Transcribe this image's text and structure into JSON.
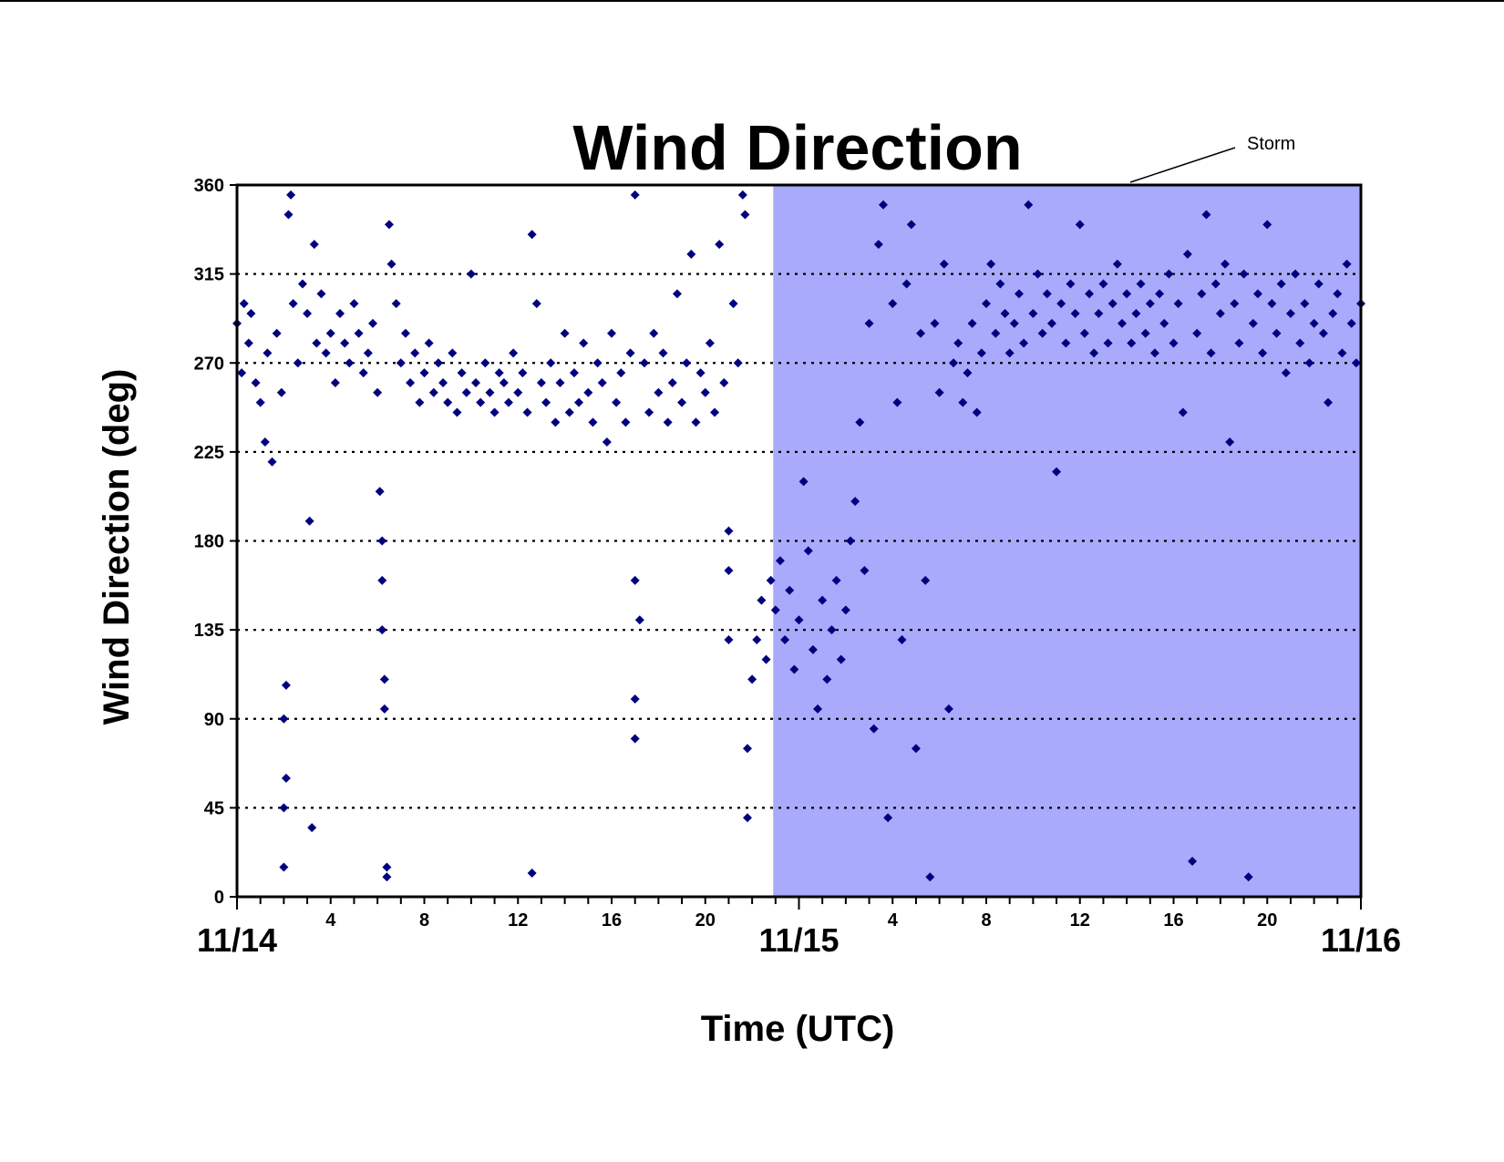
{
  "chart_data": {
    "type": "scatter",
    "title": "Wind Direction",
    "xlabel": "Time (UTC)",
    "ylabel": "Wind Direction (deg)",
    "x_unit": "hours since 11/14 00:00 UTC",
    "xlim": [
      0,
      48
    ],
    "ylim": [
      0,
      360
    ],
    "y_ticks": [
      0,
      45,
      90,
      135,
      180,
      225,
      270,
      315,
      360
    ],
    "x_hour_ticks": [
      {
        "hour": 4,
        "label": "4"
      },
      {
        "hour": 8,
        "label": "8"
      },
      {
        "hour": 12,
        "label": "12"
      },
      {
        "hour": 16,
        "label": "16"
      },
      {
        "hour": 20,
        "label": "20"
      },
      {
        "hour": 28,
        "label": "4"
      },
      {
        "hour": 32,
        "label": "8"
      },
      {
        "hour": 36,
        "label": "12"
      },
      {
        "hour": 40,
        "label": "16"
      },
      {
        "hour": 44,
        "label": "20"
      }
    ],
    "x_date_ticks": [
      {
        "hour": 0,
        "label": "11/14"
      },
      {
        "hour": 24,
        "label": "11/15"
      },
      {
        "hour": 48,
        "label": "11/16"
      }
    ],
    "grid": "horizontal dotted",
    "marker": "diamond",
    "marker_color": "#00007f",
    "shaded_region": {
      "start": 22.9,
      "end": 48,
      "color": "#aaaafc"
    },
    "annotation": {
      "text": "Storm"
    },
    "series": [
      {
        "points": [
          [
            0.0,
            290
          ],
          [
            0.2,
            265
          ],
          [
            0.3,
            300
          ],
          [
            0.5,
            280
          ],
          [
            0.6,
            295
          ],
          [
            0.8,
            260
          ],
          [
            1.0,
            250
          ],
          [
            1.2,
            230
          ],
          [
            1.3,
            275
          ],
          [
            1.5,
            220
          ],
          [
            1.7,
            285
          ],
          [
            1.9,
            255
          ],
          [
            2.0,
            90
          ],
          [
            2.0,
            45
          ],
          [
            2.0,
            15
          ],
          [
            2.1,
            60
          ],
          [
            2.1,
            107
          ],
          [
            2.2,
            345
          ],
          [
            2.3,
            355
          ],
          [
            2.4,
            300
          ],
          [
            2.6,
            270
          ],
          [
            2.8,
            310
          ],
          [
            3.0,
            295
          ],
          [
            3.1,
            190
          ],
          [
            3.2,
            35
          ],
          [
            3.3,
            330
          ],
          [
            3.4,
            280
          ],
          [
            3.6,
            305
          ],
          [
            3.8,
            275
          ],
          [
            4.0,
            285
          ],
          [
            4.2,
            260
          ],
          [
            4.4,
            295
          ],
          [
            4.6,
            280
          ],
          [
            4.8,
            270
          ],
          [
            5.0,
            300
          ],
          [
            5.2,
            285
          ],
          [
            5.4,
            265
          ],
          [
            5.6,
            275
          ],
          [
            5.8,
            290
          ],
          [
            6.0,
            255
          ],
          [
            6.1,
            205
          ],
          [
            6.2,
            180
          ],
          [
            6.2,
            160
          ],
          [
            6.2,
            135
          ],
          [
            6.3,
            110
          ],
          [
            6.3,
            95
          ],
          [
            6.4,
            15
          ],
          [
            6.4,
            10
          ],
          [
            6.5,
            340
          ],
          [
            6.6,
            320
          ],
          [
            6.8,
            300
          ],
          [
            7.0,
            270
          ],
          [
            7.2,
            285
          ],
          [
            7.4,
            260
          ],
          [
            7.6,
            275
          ],
          [
            7.8,
            250
          ],
          [
            8.0,
            265
          ],
          [
            8.2,
            280
          ],
          [
            8.4,
            255
          ],
          [
            8.6,
            270
          ],
          [
            8.8,
            260
          ],
          [
            9.0,
            250
          ],
          [
            9.2,
            275
          ],
          [
            9.4,
            245
          ],
          [
            9.6,
            265
          ],
          [
            9.8,
            255
          ],
          [
            10.0,
            315
          ],
          [
            10.2,
            260
          ],
          [
            10.4,
            250
          ],
          [
            10.6,
            270
          ],
          [
            10.8,
            255
          ],
          [
            11.0,
            245
          ],
          [
            11.2,
            265
          ],
          [
            11.4,
            260
          ],
          [
            11.6,
            250
          ],
          [
            11.8,
            275
          ],
          [
            12.0,
            255
          ],
          [
            12.2,
            265
          ],
          [
            12.4,
            245
          ],
          [
            12.6,
            335
          ],
          [
            12.6,
            12
          ],
          [
            12.8,
            300
          ],
          [
            13.0,
            260
          ],
          [
            13.2,
            250
          ],
          [
            13.4,
            270
          ],
          [
            13.6,
            240
          ],
          [
            13.8,
            260
          ],
          [
            14.0,
            285
          ],
          [
            14.2,
            245
          ],
          [
            14.4,
            265
          ],
          [
            14.6,
            250
          ],
          [
            14.8,
            280
          ],
          [
            15.0,
            255
          ],
          [
            15.2,
            240
          ],
          [
            15.4,
            270
          ],
          [
            15.6,
            260
          ],
          [
            15.8,
            230
          ],
          [
            16.0,
            285
          ],
          [
            16.2,
            250
          ],
          [
            16.4,
            265
          ],
          [
            16.6,
            240
          ],
          [
            16.8,
            275
          ],
          [
            17.0,
            355
          ],
          [
            17.0,
            160
          ],
          [
            17.0,
            100
          ],
          [
            17.0,
            80
          ],
          [
            17.2,
            140
          ],
          [
            17.4,
            270
          ],
          [
            17.6,
            245
          ],
          [
            17.8,
            285
          ],
          [
            18.0,
            255
          ],
          [
            18.2,
            275
          ],
          [
            18.4,
            240
          ],
          [
            18.6,
            260
          ],
          [
            18.8,
            305
          ],
          [
            19.0,
            250
          ],
          [
            19.2,
            270
          ],
          [
            19.4,
            325
          ],
          [
            19.6,
            240
          ],
          [
            19.8,
            265
          ],
          [
            20.0,
            255
          ],
          [
            20.2,
            280
          ],
          [
            20.4,
            245
          ],
          [
            20.6,
            330
          ],
          [
            20.8,
            260
          ],
          [
            21.0,
            185
          ],
          [
            21.0,
            165
          ],
          [
            21.0,
            130
          ],
          [
            21.2,
            300
          ],
          [
            21.4,
            270
          ],
          [
            21.6,
            355
          ],
          [
            21.7,
            345
          ],
          [
            21.8,
            40
          ],
          [
            21.8,
            75
          ],
          [
            22.0,
            110
          ],
          [
            22.2,
            130
          ],
          [
            22.4,
            150
          ],
          [
            22.6,
            120
          ],
          [
            22.8,
            160
          ],
          [
            23.0,
            145
          ],
          [
            23.2,
            170
          ],
          [
            23.4,
            130
          ],
          [
            23.6,
            155
          ],
          [
            23.8,
            115
          ],
          [
            24.0,
            140
          ],
          [
            24.2,
            210
          ],
          [
            24.4,
            175
          ],
          [
            24.6,
            125
          ],
          [
            24.8,
            95
          ],
          [
            25.0,
            150
          ],
          [
            25.2,
            110
          ],
          [
            25.4,
            135
          ],
          [
            25.6,
            160
          ],
          [
            25.8,
            120
          ],
          [
            26.0,
            145
          ],
          [
            26.2,
            180
          ],
          [
            26.4,
            200
          ],
          [
            26.6,
            240
          ],
          [
            26.8,
            165
          ],
          [
            27.0,
            290
          ],
          [
            27.2,
            85
          ],
          [
            27.4,
            330
          ],
          [
            27.6,
            350
          ],
          [
            27.8,
            40
          ],
          [
            28.0,
            300
          ],
          [
            28.2,
            250
          ],
          [
            28.4,
            130
          ],
          [
            28.6,
            310
          ],
          [
            28.8,
            340
          ],
          [
            29.0,
            75
          ],
          [
            29.2,
            285
          ],
          [
            29.4,
            160
          ],
          [
            29.6,
            10
          ],
          [
            29.8,
            290
          ],
          [
            30.0,
            255
          ],
          [
            30.2,
            320
          ],
          [
            30.4,
            95
          ],
          [
            30.6,
            270
          ],
          [
            30.8,
            280
          ],
          [
            31.0,
            250
          ],
          [
            31.2,
            265
          ],
          [
            31.4,
            290
          ],
          [
            31.6,
            245
          ],
          [
            31.8,
            275
          ],
          [
            32.0,
            300
          ],
          [
            32.2,
            320
          ],
          [
            32.4,
            285
          ],
          [
            32.6,
            310
          ],
          [
            32.8,
            295
          ],
          [
            33.0,
            275
          ],
          [
            33.2,
            290
          ],
          [
            33.4,
            305
          ],
          [
            33.6,
            280
          ],
          [
            33.8,
            350
          ],
          [
            34.0,
            295
          ],
          [
            34.2,
            315
          ],
          [
            34.4,
            285
          ],
          [
            34.6,
            305
          ],
          [
            34.8,
            290
          ],
          [
            35.0,
            215
          ],
          [
            35.2,
            300
          ],
          [
            35.4,
            280
          ],
          [
            35.6,
            310
          ],
          [
            35.8,
            295
          ],
          [
            36.0,
            340
          ],
          [
            36.2,
            285
          ],
          [
            36.4,
            305
          ],
          [
            36.6,
            275
          ],
          [
            36.8,
            295
          ],
          [
            37.0,
            310
          ],
          [
            37.2,
            280
          ],
          [
            37.4,
            300
          ],
          [
            37.6,
            320
          ],
          [
            37.8,
            290
          ],
          [
            38.0,
            305
          ],
          [
            38.2,
            280
          ],
          [
            38.4,
            295
          ],
          [
            38.6,
            310
          ],
          [
            38.8,
            285
          ],
          [
            39.0,
            300
          ],
          [
            39.2,
            275
          ],
          [
            39.4,
            305
          ],
          [
            39.6,
            290
          ],
          [
            39.8,
            315
          ],
          [
            40.0,
            280
          ],
          [
            40.2,
            300
          ],
          [
            40.4,
            245
          ],
          [
            40.6,
            325
          ],
          [
            40.8,
            18
          ],
          [
            41.0,
            285
          ],
          [
            41.2,
            305
          ],
          [
            41.4,
            345
          ],
          [
            41.6,
            275
          ],
          [
            41.8,
            310
          ],
          [
            42.0,
            295
          ],
          [
            42.2,
            320
          ],
          [
            42.4,
            230
          ],
          [
            42.6,
            300
          ],
          [
            42.8,
            280
          ],
          [
            43.0,
            315
          ],
          [
            43.2,
            10
          ],
          [
            43.4,
            290
          ],
          [
            43.6,
            305
          ],
          [
            43.8,
            275
          ],
          [
            44.0,
            340
          ],
          [
            44.2,
            300
          ],
          [
            44.4,
            285
          ],
          [
            44.6,
            310
          ],
          [
            44.8,
            265
          ],
          [
            45.0,
            295
          ],
          [
            45.2,
            315
          ],
          [
            45.4,
            280
          ],
          [
            45.6,
            300
          ],
          [
            45.8,
            270
          ],
          [
            46.0,
            290
          ],
          [
            46.2,
            310
          ],
          [
            46.4,
            285
          ],
          [
            46.6,
            250
          ],
          [
            46.8,
            295
          ],
          [
            47.0,
            305
          ],
          [
            47.2,
            275
          ],
          [
            47.4,
            320
          ],
          [
            47.6,
            290
          ],
          [
            47.8,
            270
          ],
          [
            48.0,
            300
          ]
        ]
      }
    ]
  }
}
